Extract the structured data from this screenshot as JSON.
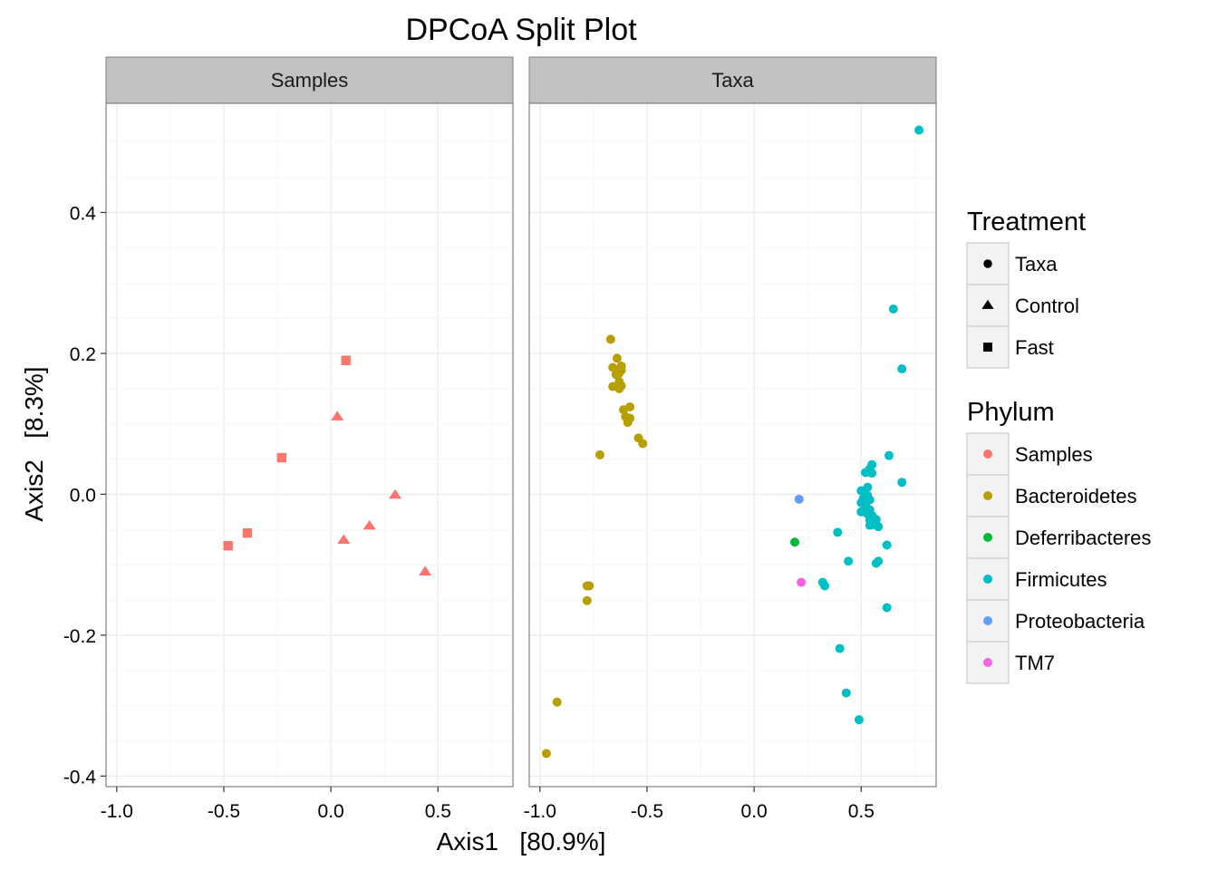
{
  "chart_data": {
    "type": "scatter",
    "title": "DPCoA Split Plot",
    "xlabel": "Axis1   [80.9%]",
    "ylabel": "Axis2   [8.3%]",
    "xlim": [
      -1.05,
      0.85
    ],
    "ylim": [
      -0.415,
      0.555
    ],
    "x_ticks": [
      -1.0,
      -0.5,
      0.0,
      0.5
    ],
    "x_tick_labels": [
      "-1.0",
      "-0.5",
      "0.0",
      "0.5"
    ],
    "y_ticks": [
      -0.4,
      -0.2,
      0.0,
      0.2,
      0.4
    ],
    "y_tick_labels": [
      "-0.4",
      "-0.2",
      "0.0",
      "0.2",
      "0.4"
    ],
    "grid": true,
    "legend_position": "right",
    "panels": [
      "Samples",
      "Taxa"
    ],
    "treatment_legend": {
      "title": "Treatment",
      "entries": [
        {
          "label": "Taxa",
          "shape": "circle"
        },
        {
          "label": "Control",
          "shape": "triangle"
        },
        {
          "label": "Fast",
          "shape": "square"
        }
      ]
    },
    "phylum_legend": {
      "title": "Phylum",
      "entries": [
        {
          "label": "Samples",
          "color": "#F8766D"
        },
        {
          "label": "Bacteroidetes",
          "color": "#B79F00"
        },
        {
          "label": "Deferribacteres",
          "color": "#00BA38"
        },
        {
          "label": "Firmicutes",
          "color": "#00BFC4"
        },
        {
          "label": "Proteobacteria",
          "color": "#619CFF"
        },
        {
          "label": "TM7",
          "color": "#F564E3"
        }
      ]
    },
    "series": [
      {
        "panel": "Samples",
        "phylum": "Samples",
        "treatment": "Fast",
        "points": [
          [
            0.07,
            0.19
          ],
          [
            -0.23,
            0.052
          ],
          [
            -0.39,
            -0.055
          ],
          [
            -0.48,
            -0.073
          ]
        ]
      },
      {
        "panel": "Samples",
        "phylum": "Samples",
        "treatment": "Control",
        "points": [
          [
            0.03,
            0.11
          ],
          [
            0.3,
            -0.001
          ],
          [
            0.18,
            -0.045
          ],
          [
            0.06,
            -0.065
          ],
          [
            0.44,
            -0.11
          ]
        ]
      },
      {
        "panel": "Taxa",
        "phylum": "Bacteroidetes",
        "treatment": "Taxa",
        "points": [
          [
            -0.67,
            0.22
          ],
          [
            -0.64,
            0.193
          ],
          [
            -0.66,
            0.18
          ],
          [
            -0.62,
            0.182
          ],
          [
            -0.63,
            0.172
          ],
          [
            -0.62,
            0.176
          ],
          [
            -0.645,
            0.17
          ],
          [
            -0.63,
            0.16
          ],
          [
            -0.62,
            0.154
          ],
          [
            -0.66,
            0.153
          ],
          [
            -0.63,
            0.15
          ],
          [
            -0.58,
            0.124
          ],
          [
            -0.61,
            0.12
          ],
          [
            -0.6,
            0.11
          ],
          [
            -0.58,
            0.108
          ],
          [
            -0.59,
            0.102
          ],
          [
            -0.54,
            0.08
          ],
          [
            -0.52,
            0.072
          ],
          [
            -0.72,
            0.056
          ],
          [
            -0.77,
            -0.13
          ],
          [
            -0.78,
            -0.13
          ],
          [
            -0.78,
            -0.151
          ],
          [
            -0.92,
            -0.295
          ],
          [
            -0.97,
            -0.368
          ]
        ]
      },
      {
        "panel": "Taxa",
        "phylum": "Deferribacteres",
        "treatment": "Taxa",
        "points": [
          [
            0.19,
            -0.068
          ]
        ]
      },
      {
        "panel": "Taxa",
        "phylum": "Proteobacteria",
        "treatment": "Taxa",
        "points": [
          [
            0.21,
            -0.007
          ]
        ]
      },
      {
        "panel": "Taxa",
        "phylum": "TM7",
        "treatment": "Taxa",
        "points": [
          [
            0.22,
            -0.125
          ]
        ]
      },
      {
        "panel": "Taxa",
        "phylum": "Firmicutes",
        "treatment": "Taxa",
        "points": [
          [
            0.77,
            0.517
          ],
          [
            0.65,
            0.263
          ],
          [
            0.69,
            0.178
          ],
          [
            0.63,
            0.055
          ],
          [
            0.55,
            0.042
          ],
          [
            0.54,
            0.036
          ],
          [
            0.52,
            0.031
          ],
          [
            0.55,
            0.03
          ],
          [
            0.69,
            0.017
          ],
          [
            0.53,
            0.01
          ],
          [
            0.5,
            0.005
          ],
          [
            0.52,
            0.0
          ],
          [
            0.53,
            -0.002
          ],
          [
            0.51,
            -0.006
          ],
          [
            0.54,
            -0.008
          ],
          [
            0.5,
            -0.012
          ],
          [
            0.52,
            -0.016
          ],
          [
            0.54,
            -0.022
          ],
          [
            0.5,
            -0.025
          ],
          [
            0.53,
            -0.028
          ],
          [
            0.55,
            -0.03
          ],
          [
            0.56,
            -0.034
          ],
          [
            0.54,
            -0.036
          ],
          [
            0.57,
            -0.036
          ],
          [
            0.55,
            -0.04
          ],
          [
            0.56,
            -0.043
          ],
          [
            0.58,
            -0.046
          ],
          [
            0.54,
            -0.044
          ],
          [
            0.39,
            -0.054
          ],
          [
            0.62,
            -0.072
          ],
          [
            0.44,
            -0.095
          ],
          [
            0.58,
            -0.095
          ],
          [
            0.57,
            -0.098
          ],
          [
            0.32,
            -0.125
          ],
          [
            0.33,
            -0.13
          ],
          [
            0.62,
            -0.161
          ],
          [
            0.4,
            -0.219
          ],
          [
            0.43,
            -0.282
          ],
          [
            0.49,
            -0.32
          ]
        ]
      }
    ]
  }
}
